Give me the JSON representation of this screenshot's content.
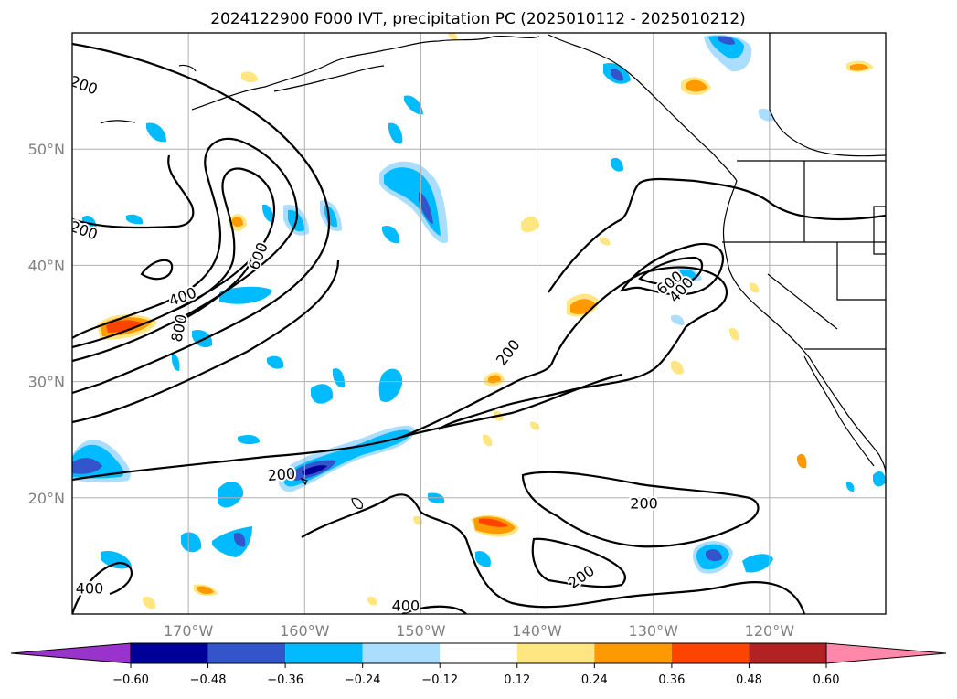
{
  "chart_data": {
    "type": "map",
    "title": "2024122900 F000 IVT, precipitation PC (2025010112 - 2025010212)",
    "lon_range": [
      -180,
      -110
    ],
    "lat_range": [
      10,
      60
    ],
    "x_ticks": [
      {
        "value": -170,
        "label": "170°W"
      },
      {
        "value": -160,
        "label": "160°W"
      },
      {
        "value": -150,
        "label": "150°W"
      },
      {
        "value": -140,
        "label": "140°W"
      },
      {
        "value": -130,
        "label": "130°W"
      },
      {
        "value": -120,
        "label": "120°W"
      }
    ],
    "y_ticks": [
      {
        "value": 20,
        "label": "20°N"
      },
      {
        "value": 30,
        "label": "30°N"
      },
      {
        "value": 40,
        "label": "40°N"
      },
      {
        "value": 50,
        "label": "50°N"
      }
    ],
    "grid": true,
    "colorbar": {
      "levels": [
        -0.6,
        -0.48,
        -0.36,
        -0.24,
        -0.12,
        0.12,
        0.24,
        0.36,
        0.48,
        0.6
      ],
      "tick_labels": [
        "−0.60",
        "−0.48",
        "−0.36",
        "−0.24",
        "−0.12",
        "0.12",
        "0.24",
        "0.36",
        "0.48",
        "0.60"
      ],
      "colors": [
        "#9933cc",
        "#000099",
        "#3355cc",
        "#00bbff",
        "#aaddff",
        "#ffffff",
        "#ffe680",
        "#ff9900",
        "#ff4400",
        "#b22222",
        "#ff88aa"
      ],
      "extend": "both"
    },
    "contour_levels": [
      200,
      400,
      600,
      800
    ],
    "contour_labels": [
      {
        "text": "200",
        "lon": -179,
        "lat": 43.0,
        "angle": 20
      },
      {
        "text": "200",
        "lon": -179,
        "lat": 55.5,
        "angle": 20
      },
      {
        "text": "400",
        "lon": -170.5,
        "lat": 37.3,
        "angle": -20
      },
      {
        "text": "600",
        "lon": -164.0,
        "lat": 40.8,
        "angle": -68
      },
      {
        "text": "800",
        "lon": -170.8,
        "lat": 34.6,
        "angle": -78
      },
      {
        "text": "200",
        "lon": -162.0,
        "lat": 22.0,
        "angle": -5
      },
      {
        "text": "200",
        "lon": -142.5,
        "lat": 32.5,
        "angle": -52
      },
      {
        "text": "600",
        "lon": -128.6,
        "lat": 38.5,
        "angle": -38
      },
      {
        "text": "400",
        "lon": -127.6,
        "lat": 37.9,
        "angle": -48
      },
      {
        "text": "200",
        "lon": -130.8,
        "lat": 19.5,
        "angle": 0
      },
      {
        "text": "200",
        "lon": -136.2,
        "lat": 13.2,
        "angle": -35
      },
      {
        "text": "400",
        "lon": -178.5,
        "lat": 12.2,
        "angle": 0
      },
      {
        "text": "400",
        "lon": -151.3,
        "lat": 10.7,
        "angle": 0
      }
    ]
  }
}
